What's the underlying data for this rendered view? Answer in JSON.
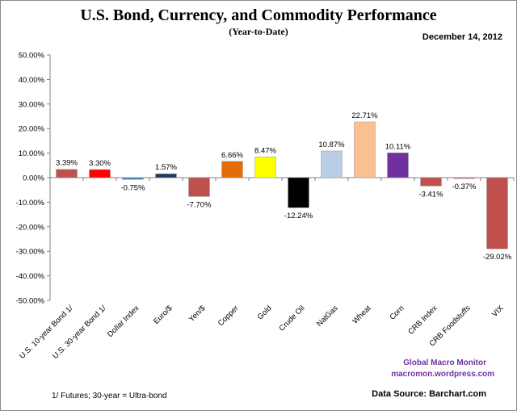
{
  "chart_data": {
    "type": "bar",
    "title": "U.S. Bond, Currency, and Commodity Performance",
    "subtitle": "(Year-to-Date)",
    "date": "December 14, 2012",
    "categories": [
      "U.S. 10-year Bond 1/",
      "U.S. 30-year Bond 1/",
      "Dollar Index",
      "Euro/$",
      "Yen/$",
      "Copper",
      "Gold",
      "Crude Oil",
      "NatGas",
      "Wheat",
      "Corn",
      "CRB Index",
      "CRB Foodstuffs",
      "VIX"
    ],
    "values": [
      3.39,
      3.3,
      -0.75,
      1.57,
      -7.7,
      6.66,
      8.47,
      -12.24,
      10.87,
      22.71,
      10.11,
      -3.41,
      -0.37,
      -29.02
    ],
    "value_labels": [
      "3.39%",
      "3.30%",
      "-0.75%",
      "1.57%",
      "-7.70%",
      "6.66%",
      "8.47%",
      "-12.24%",
      "10.87%",
      "22.71%",
      "10.11%",
      "-3.41%",
      "-0.37%",
      "-29.02%"
    ],
    "colors": [
      "#c0504d",
      "#ff0000",
      "#4f81bd",
      "#1f3864",
      "#c0504d",
      "#e46c0a",
      "#ffff00",
      "#000000",
      "#b9cde5",
      "#fac090",
      "#7030a0",
      "#c0504d",
      "#c0504d",
      "#c0504d"
    ],
    "ylim": [
      -50,
      50
    ],
    "ytick_labels": [
      "50.00%",
      "40.00%",
      "30.00%",
      "20.00%",
      "10.00%",
      "0.00%",
      "-10.00%",
      "-20.00%",
      "-30.00%",
      "-40.00%",
      "-50.00%"
    ],
    "ytick_values": [
      50,
      40,
      30,
      20,
      10,
      0,
      -10,
      -20,
      -30,
      -40,
      -50
    ],
    "grid": false,
    "xlabel": "",
    "ylabel": ""
  },
  "attribution": {
    "line1": "Global Macro Monitor",
    "line2": "macromon.wordpress.com"
  },
  "footnote": "1/  Futures; 30-year = Ultra-bond",
  "source": "Data Source:  Barchart.com"
}
